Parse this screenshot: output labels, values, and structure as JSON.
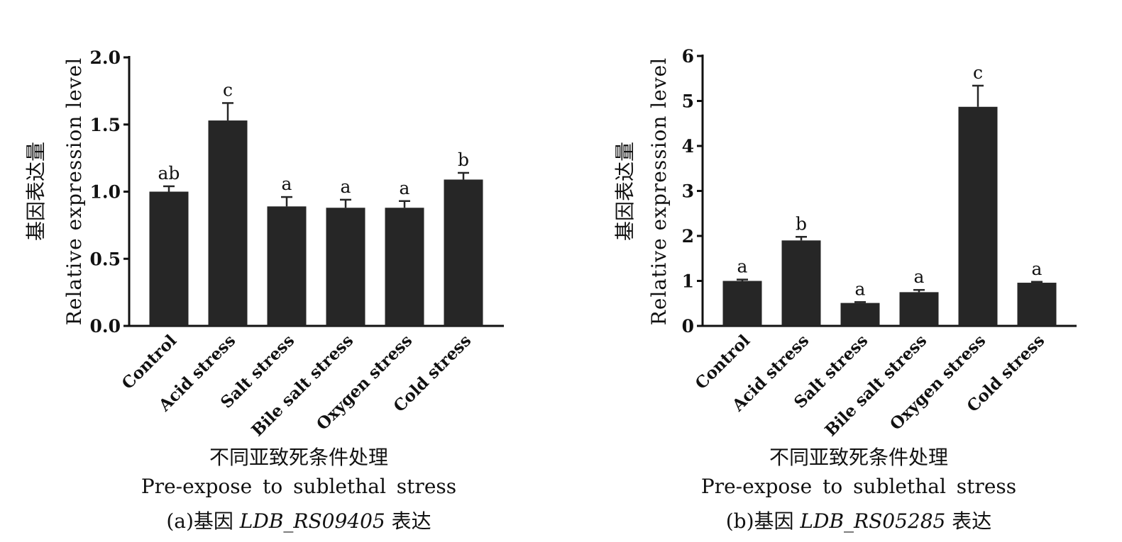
{
  "figure": {
    "panels": [
      {
        "cn_xlabel": "不同亚致死条件处理",
        "en_xlabel": "Pre-expose to sublethal stress",
        "caption_prefix": "(a)基因 ",
        "caption_gene": "LDB_RS09405",
        "caption_suffix": " 表达",
        "cn_ylabel": "基因表达量",
        "en_ylabel": "Relative expression level"
      },
      {
        "cn_xlabel": "不同亚致死条件处理",
        "en_xlabel": "Pre-expose to sublethal stress",
        "caption_prefix": "(b)基因 ",
        "caption_gene": "LDB_RS05285",
        "caption_suffix": " 表达",
        "cn_ylabel": "基因表达量",
        "en_ylabel": "Relative expression level"
      }
    ]
  },
  "chart_data": [
    {
      "type": "bar",
      "categories": [
        "Control",
        "Acid stress",
        "Salt stress",
        "Bile salt stress",
        "Oxygen stress",
        "Cold stress"
      ],
      "values": [
        1.0,
        1.53,
        0.89,
        0.88,
        0.88,
        1.09
      ],
      "errors": [
        0.04,
        0.13,
        0.07,
        0.06,
        0.05,
        0.05
      ],
      "significance": [
        "ab",
        "c",
        "a",
        "a",
        "a",
        "b"
      ],
      "ylim": [
        0,
        2.0
      ],
      "yticks": [
        "0.0",
        "0.5",
        "1.0",
        "1.5",
        "2.0"
      ],
      "xlabel": "不同亚致死条件处理 Pre-expose to sublethal stress",
      "ylabel": "基因表达量 Relative expression level",
      "bar_color": "#262626",
      "grid": false
    },
    {
      "type": "bar",
      "categories": [
        "Control",
        "Acid stress",
        "Salt stress",
        "Bile salt stress",
        "Oxygen stress",
        "Cold stress"
      ],
      "values": [
        1.0,
        1.9,
        0.51,
        0.75,
        4.87,
        0.96
      ],
      "errors": [
        0.03,
        0.08,
        0.02,
        0.05,
        0.47,
        0.02
      ],
      "significance": [
        "a",
        "b",
        "a",
        "a",
        "c",
        "a"
      ],
      "ylim": [
        0,
        6
      ],
      "yticks": [
        "0",
        "1",
        "2",
        "3",
        "4",
        "5",
        "6"
      ],
      "xlabel": "不同亚致死条件处理 Pre-expose to sublethal stress",
      "ylabel": "基因表达量 Relative expression level",
      "bar_color": "#262626",
      "grid": false
    }
  ]
}
